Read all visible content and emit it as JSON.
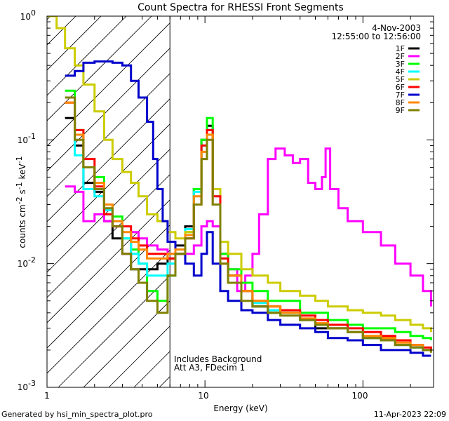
{
  "chart_data": {
    "type": "line",
    "title": "Count Spectra for RHESSI Front Segments",
    "xlabel": "Energy (keV)",
    "ylabel": "counts cm",
    "ylabel_sup1": "-2",
    "ylabel_mid": " s",
    "ylabel_sup2": "-1",
    "ylabel_tail": " keV",
    "ylabel_sup3": "-1",
    "xscale": "log",
    "yscale": "log",
    "xlim": [
      1,
      280
    ],
    "ylim": [
      0.001,
      1
    ],
    "x_ticks": [
      {
        "value": 1,
        "label": "1"
      },
      {
        "value": 10,
        "label": "10"
      },
      {
        "value": 100,
        "label": "100"
      }
    ],
    "y_ticks": [
      {
        "value": 0.001,
        "base": "10",
        "exp": "-3"
      },
      {
        "value": 0.01,
        "base": "10",
        "exp": "-2"
      },
      {
        "value": 0.1,
        "base": "10",
        "exp": "-1"
      },
      {
        "value": 1,
        "base": "10",
        "exp": "0"
      }
    ],
    "date": "4-Nov-2003",
    "time_range": "12:55:00 to 12:56:00",
    "hatched_region_keV": [
      1,
      6
    ],
    "annotations": [
      "Includes Background",
      "Att A3, FDecim 1"
    ],
    "footer_left": "Generated by hsi_min_spectra_plot.pro",
    "footer_right": "11-Apr-2023 22:09",
    "legend_position": "top-right",
    "series": [
      {
        "name": "1F",
        "color": "#000000",
        "x": [
          1.3,
          1.5,
          1.7,
          2.0,
          2.3,
          2.6,
          3.0,
          3.4,
          3.8,
          4.3,
          5.0,
          5.8,
          6.5,
          7.5,
          8.5,
          9.5,
          10.3,
          11.2,
          12.5,
          14,
          17,
          20,
          25,
          30,
          40,
          50,
          60,
          80,
          100,
          130,
          160,
          200,
          240,
          270
        ],
        "y": [
          0.15,
          0.09,
          0.045,
          0.038,
          0.022,
          0.016,
          0.012,
          0.009,
          0.009,
          0.009,
          0.01,
          0.011,
          0.014,
          0.02,
          0.04,
          0.1,
          0.13,
          0.04,
          0.012,
          0.008,
          0.006,
          0.0045,
          0.004,
          0.004,
          0.0035,
          0.003,
          0.003,
          0.0028,
          0.0025,
          0.0025,
          0.0022,
          0.0022,
          0.002,
          0.002
        ]
      },
      {
        "name": "2F",
        "color": "#ff00ff",
        "x": [
          1.3,
          1.5,
          1.7,
          2.0,
          2.3,
          2.6,
          3.0,
          3.4,
          3.8,
          4.3,
          5.0,
          5.8,
          6.5,
          7.5,
          8.5,
          9.5,
          10.3,
          11.2,
          12.5,
          14,
          16,
          18,
          20,
          22,
          25,
          28,
          32,
          36,
          40,
          45,
          50,
          55,
          58,
          62,
          70,
          80,
          100,
          130,
          160,
          200,
          240,
          270
        ],
        "y": [
          0.042,
          0.038,
          0.022,
          0.025,
          0.022,
          0.02,
          0.012,
          0.018,
          0.016,
          0.014,
          0.013,
          0.012,
          0.012,
          0.012,
          0.014,
          0.02,
          0.022,
          0.02,
          0.012,
          0.009,
          0.006,
          0.008,
          0.012,
          0.025,
          0.07,
          0.085,
          0.075,
          0.065,
          0.07,
          0.045,
          0.04,
          0.05,
          0.085,
          0.04,
          0.028,
          0.022,
          0.018,
          0.014,
          0.01,
          0.008,
          0.006,
          0.0045
        ]
      },
      {
        "name": "3F",
        "color": "#00ff00",
        "x": [
          1.3,
          1.5,
          1.7,
          2.0,
          2.3,
          2.6,
          3.0,
          3.4,
          3.8,
          4.3,
          5.0,
          5.8,
          6.5,
          7.5,
          8.5,
          9.5,
          10.3,
          11.2,
          12.5,
          14,
          17,
          20,
          25,
          30,
          40,
          50,
          60,
          80,
          100,
          130,
          160,
          200,
          240,
          270
        ],
        "y": [
          0.25,
          0.12,
          0.06,
          0.05,
          0.03,
          0.024,
          0.016,
          0.013,
          0.01,
          0.006,
          0.005,
          0.008,
          0.012,
          0.018,
          0.04,
          0.1,
          0.15,
          0.04,
          0.012,
          0.009,
          0.007,
          0.006,
          0.005,
          0.005,
          0.004,
          0.004,
          0.0035,
          0.0032,
          0.003,
          0.003,
          0.0028,
          0.0026,
          0.0025,
          0.0024
        ]
      },
      {
        "name": "4F",
        "color": "#00ffff",
        "x": [
          1.3,
          1.5,
          1.7,
          2.0,
          2.3,
          2.6,
          3.0,
          3.4,
          3.8,
          4.3,
          5.0,
          5.8,
          6.5,
          7.5,
          8.5,
          9.5,
          10.3,
          11.2,
          12.5,
          14,
          17,
          20,
          25,
          30,
          40,
          50,
          60,
          80,
          100,
          130,
          160,
          200,
          240,
          270
        ],
        "y": [
          0.22,
          0.075,
          0.04,
          0.035,
          0.027,
          0.022,
          0.016,
          0.012,
          0.01,
          0.008,
          0.008,
          0.01,
          0.013,
          0.019,
          0.038,
          0.09,
          0.12,
          0.035,
          0.011,
          0.008,
          0.006,
          0.0048,
          0.0042,
          0.004,
          0.0035,
          0.0032,
          0.003,
          0.0028,
          0.0025,
          0.0024,
          0.0022,
          0.0021,
          0.002,
          0.002
        ]
      },
      {
        "name": "5F",
        "color": "#cccc00",
        "x": [
          1.0,
          1.15,
          1.3,
          1.5,
          1.7,
          2.0,
          2.3,
          2.6,
          3.0,
          3.4,
          3.8,
          4.3,
          5.0,
          5.8,
          6.5,
          7.5,
          8.5,
          9.5,
          10.3,
          11.2,
          12.5,
          14,
          17,
          20,
          25,
          30,
          40,
          50,
          60,
          80,
          100,
          130,
          160,
          200,
          240,
          270
        ],
        "y": [
          1.0,
          0.8,
          0.55,
          0.4,
          0.28,
          0.17,
          0.1,
          0.07,
          0.055,
          0.045,
          0.035,
          0.025,
          0.022,
          0.018,
          0.016,
          0.018,
          0.03,
          0.07,
          0.11,
          0.04,
          0.015,
          0.012,
          0.009,
          0.008,
          0.007,
          0.006,
          0.0055,
          0.005,
          0.0045,
          0.0042,
          0.004,
          0.0038,
          0.0035,
          0.0032,
          0.003,
          0.0028
        ]
      },
      {
        "name": "6F",
        "color": "#ff0000",
        "x": [
          1.3,
          1.5,
          1.7,
          2.0,
          2.3,
          2.6,
          3.0,
          3.4,
          3.8,
          4.3,
          5.0,
          5.8,
          6.5,
          7.5,
          8.5,
          9.5,
          10.3,
          11.2,
          12.5,
          14,
          17,
          20,
          25,
          30,
          40,
          50,
          60,
          80,
          100,
          130,
          160,
          200,
          240,
          270
        ],
        "y": [
          0.2,
          0.12,
          0.07,
          0.042,
          0.025,
          0.02,
          0.02,
          0.016,
          0.014,
          0.012,
          0.012,
          0.011,
          0.012,
          0.016,
          0.03,
          0.09,
          0.12,
          0.035,
          0.011,
          0.008,
          0.006,
          0.005,
          0.0045,
          0.0042,
          0.0038,
          0.0035,
          0.0032,
          0.003,
          0.0028,
          0.0026,
          0.0024,
          0.0022,
          0.0021,
          0.002
        ]
      },
      {
        "name": "7F",
        "color": "#0000cc",
        "x": [
          1.3,
          1.5,
          1.7,
          2.0,
          2.3,
          2.6,
          3.0,
          3.4,
          3.8,
          4.3,
          4.7,
          5.0,
          5.4,
          5.8,
          6.5,
          7.5,
          8.5,
          9.5,
          10.3,
          11.2,
          12.5,
          14,
          17,
          20,
          25,
          30,
          40,
          50,
          60,
          80,
          100,
          130,
          160,
          200,
          240,
          270
        ],
        "y": [
          0.33,
          0.36,
          0.42,
          0.43,
          0.43,
          0.42,
          0.4,
          0.3,
          0.22,
          0.14,
          0.07,
          0.04,
          0.022,
          0.015,
          0.012,
          0.01,
          0.008,
          0.012,
          0.018,
          0.01,
          0.006,
          0.005,
          0.0042,
          0.004,
          0.0035,
          0.0032,
          0.003,
          0.0028,
          0.0025,
          0.0024,
          0.0022,
          0.002,
          0.002,
          0.0019,
          0.0018,
          0.0018
        ]
      },
      {
        "name": "8F",
        "color": "#ff8800",
        "x": [
          1.3,
          1.5,
          1.7,
          2.0,
          2.3,
          2.6,
          3.0,
          3.4,
          3.8,
          4.3,
          5.0,
          5.8,
          6.5,
          7.5,
          8.5,
          9.5,
          10.3,
          11.2,
          12.5,
          14,
          17,
          20,
          25,
          30,
          40,
          50,
          60,
          80,
          100,
          130,
          160,
          200,
          240,
          270
        ],
        "y": [
          0.2,
          0.11,
          0.06,
          0.045,
          0.03,
          0.022,
          0.018,
          0.015,
          0.013,
          0.011,
          0.011,
          0.012,
          0.013,
          0.017,
          0.035,
          0.08,
          0.11,
          0.03,
          0.01,
          0.008,
          0.006,
          0.005,
          0.0045,
          0.004,
          0.0036,
          0.0033,
          0.003,
          0.0028,
          0.0026,
          0.0025,
          0.0023,
          0.0022,
          0.002,
          0.002
        ]
      },
      {
        "name": "9F",
        "color": "#808000",
        "x": [
          1.3,
          1.5,
          1.7,
          2.0,
          2.3,
          2.6,
          3.0,
          3.4,
          3.8,
          4.3,
          5.0,
          5.8,
          6.5,
          7.5,
          8.5,
          9.5,
          10.3,
          11.2,
          12.5,
          14,
          17,
          20,
          25,
          30,
          40,
          50,
          60,
          80,
          100,
          130,
          160,
          200,
          240,
          270
        ],
        "y": [
          0.22,
          0.1,
          0.06,
          0.04,
          0.028,
          0.02,
          0.012,
          0.009,
          0.007,
          0.005,
          0.004,
          0.008,
          0.012,
          0.016,
          0.03,
          0.07,
          0.1,
          0.03,
          0.01,
          0.007,
          0.005,
          0.0045,
          0.004,
          0.0038,
          0.0035,
          0.0032,
          0.003,
          0.0028,
          0.0025,
          0.0024,
          0.0022,
          0.0021,
          0.002,
          0.0019
        ]
      }
    ]
  }
}
